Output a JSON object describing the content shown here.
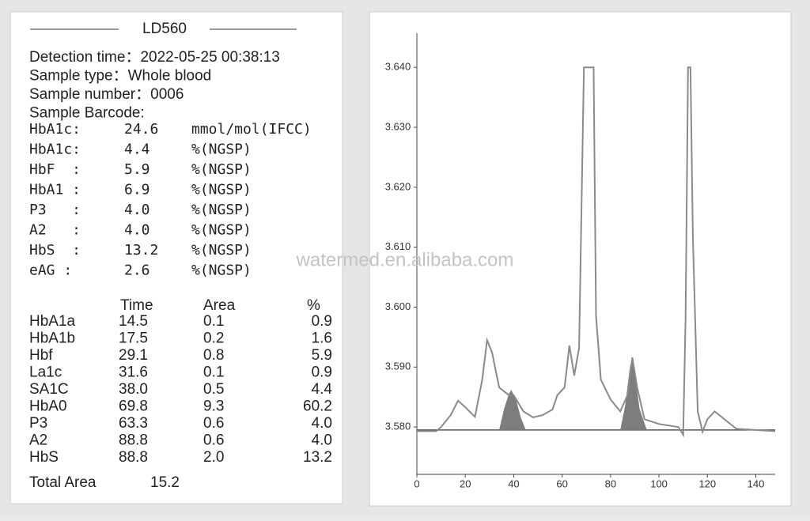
{
  "report": {
    "title": "LD560",
    "info": [
      "Detection time：2022-05-25  00:38:13",
      "Sample type：Whole blood",
      "Sample number：0006",
      "Sample Barcode:"
    ],
    "results": [
      {
        "label": "HbA1c:",
        "value": "24.6",
        "unit": "mmol/mol(IFCC)"
      },
      {
        "label": "HbA1c:",
        "value": "4.4",
        "unit": "%(NGSP)"
      },
      {
        "label": "HbF  :",
        "value": "5.9",
        "unit": "%(NGSP)"
      },
      {
        "label": "HbA1 :",
        "value": "6.9",
        "unit": "%(NGSP)"
      },
      {
        "label": "P3   :",
        "value": "4.0",
        "unit": "%(NGSP)"
      },
      {
        "label": "A2   :",
        "value": "4.0",
        "unit": "%(NGSP)"
      },
      {
        "label": "HbS  :",
        "value": "13.2",
        "unit": "%(NGSP)"
      },
      {
        "label": "eAG :",
        "value": "2.6",
        "unit": "%(NGSP)"
      }
    ],
    "table": {
      "columns": [
        "Time",
        "Area",
        "%"
      ],
      "rows": [
        [
          "HbA1a",
          "14.5",
          "0.1",
          "0.9"
        ],
        [
          "HbA1b",
          "17.5",
          "0.2",
          "1.6"
        ],
        [
          "Hbf",
          "29.1",
          "0.8",
          "5.9"
        ],
        [
          "La1c",
          "31.6",
          "0.1",
          "0.9"
        ],
        [
          "SA1C",
          "38.0",
          "0.5",
          "4.4"
        ],
        [
          "HbA0",
          "69.8",
          "9.3",
          "60.2"
        ],
        [
          "P3",
          "63.3",
          "0.6",
          "4.0"
        ],
        [
          "A2",
          "88.8",
          "0.6",
          "4.0"
        ],
        [
          "HbS",
          "88.8",
          "2.0",
          "13.2"
        ]
      ]
    },
    "total": {
      "label": "Total Area",
      "value": "15.2"
    }
  },
  "watermark": "watermed.en.alibaba.com",
  "chart_data": {
    "type": "line",
    "color": "#8a8a8a",
    "x": [
      0,
      8,
      10,
      14,
      17,
      20,
      24,
      27,
      29,
      31,
      34,
      38,
      40,
      44,
      48,
      52,
      56,
      58,
      61,
      63,
      65,
      67,
      69,
      73,
      74,
      76,
      80,
      84,
      87,
      89,
      91,
      94,
      100,
      108,
      110,
      111,
      112,
      113,
      114,
      116,
      118,
      120,
      123,
      127,
      132,
      148
    ],
    "values": [
      3.5793,
      3.5793,
      3.58,
      3.582,
      3.5844,
      3.5833,
      3.5817,
      3.5879,
      3.5945,
      3.5925,
      3.5866,
      3.5853,
      3.5853,
      3.5826,
      3.5816,
      3.582,
      3.5829,
      3.5853,
      3.5866,
      3.5936,
      3.5886,
      3.5932,
      3.64,
      3.64,
      3.5985,
      3.5879,
      3.5846,
      3.5826,
      3.5853,
      3.5916,
      3.5866,
      3.5813,
      3.5805,
      3.58,
      3.5787,
      3.5985,
      3.64,
      3.64,
      3.6117,
      3.5826,
      3.5792,
      3.5813,
      3.5826,
      3.5813,
      3.5797,
      3.5793
    ],
    "baseline": 3.5795,
    "fill_color": "#7d7d7d",
    "fills": [
      {
        "x": [
          34,
          36,
          38,
          39,
          41,
          43,
          45
        ],
        "values": [
          3.5795,
          3.583,
          3.5855,
          3.5862,
          3.5845,
          3.5815,
          3.5795
        ]
      },
      {
        "x": [
          84,
          86,
          88,
          89,
          90,
          92,
          95
        ],
        "values": [
          3.5795,
          3.5835,
          3.59,
          3.5917,
          3.589,
          3.583,
          3.5795
        ]
      }
    ],
    "xlim": [
      0,
      148
    ],
    "ylim": [
      3.5721,
      3.6457
    ],
    "xticks": [
      0,
      20,
      40,
      60,
      80,
      100,
      120,
      140
    ],
    "yticks": [
      {
        "value": 3.58,
        "label": "3.580"
      },
      {
        "value": 3.59,
        "label": "3.590"
      },
      {
        "value": 3.6,
        "label": "3.600"
      },
      {
        "value": 3.61,
        "label": "3.610"
      },
      {
        "value": 3.62,
        "label": "3.620"
      },
      {
        "value": 3.63,
        "label": "3.630"
      },
      {
        "value": 3.64,
        "label": "3.640"
      }
    ]
  }
}
